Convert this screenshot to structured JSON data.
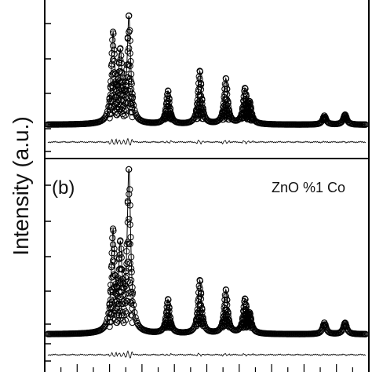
{
  "chart_data": {
    "type": "line",
    "ylabel": "Intensity (a.u.)",
    "panels": [
      {
        "label": "",
        "annotation": "",
        "peaks": [
          {
            "x": 0.205,
            "h": 0.78
          },
          {
            "x": 0.228,
            "h": 0.58
          },
          {
            "x": 0.255,
            "h": 0.94
          },
          {
            "x": 0.378,
            "h": 0.3
          },
          {
            "x": 0.478,
            "h": 0.48
          },
          {
            "x": 0.56,
            "h": 0.41
          },
          {
            "x": 0.62,
            "h": 0.3
          },
          {
            "x": 0.635,
            "h": 0.16
          },
          {
            "x": 0.87,
            "h": 0.08
          },
          {
            "x": 0.935,
            "h": 0.09
          }
        ]
      },
      {
        "label": "(b)",
        "annotation": "ZnO  %1 Co",
        "peaks": [
          {
            "x": 0.205,
            "h": 0.6
          },
          {
            "x": 0.228,
            "h": 0.48
          },
          {
            "x": 0.255,
            "h": 1.0
          },
          {
            "x": 0.378,
            "h": 0.21
          },
          {
            "x": 0.478,
            "h": 0.33
          },
          {
            "x": 0.56,
            "h": 0.27
          },
          {
            "x": 0.62,
            "h": 0.2
          },
          {
            "x": 0.635,
            "h": 0.1
          },
          {
            "x": 0.87,
            "h": 0.07
          },
          {
            "x": 0.935,
            "h": 0.07
          }
        ]
      }
    ],
    "series": [
      {
        "name": "observed",
        "marker": "open-circle"
      },
      {
        "name": "calculated",
        "style": "line"
      },
      {
        "name": "difference",
        "style": "line"
      }
    ],
    "colors": {
      "line": "#000000",
      "marker": "#000000"
    }
  }
}
